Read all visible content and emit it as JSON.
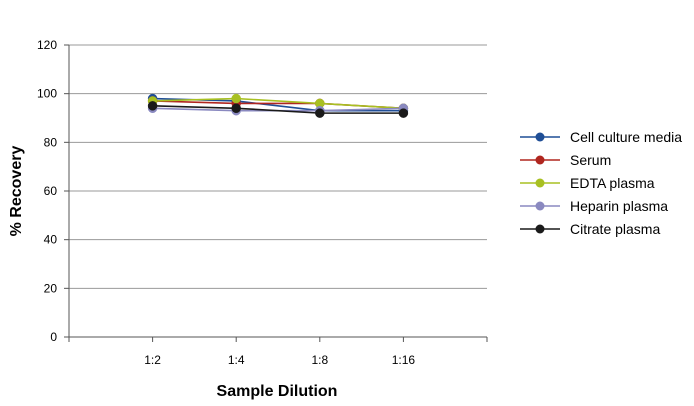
{
  "chart_data": {
    "type": "line",
    "title": "",
    "xlabel": "Sample Dilution",
    "ylabel": "% Recovery",
    "ylim": [
      0,
      120
    ],
    "yticks": [
      0,
      20,
      40,
      60,
      80,
      100,
      120
    ],
    "grid": "horizontal",
    "legend_position": "right",
    "categories": [
      "1:2",
      "1:4",
      "1:8",
      "1:16"
    ],
    "series": [
      {
        "name": "Cell culture media",
        "color": "#1f4e96",
        "values": [
          98,
          97,
          93,
          93
        ]
      },
      {
        "name": "Serum",
        "color": "#b0261f",
        "values": [
          97,
          96,
          96,
          94
        ]
      },
      {
        "name": "EDTA plasma",
        "color": "#a8c022",
        "values": [
          97,
          98,
          96,
          94
        ]
      },
      {
        "name": "Heparin plasma",
        "color": "#8a89c0",
        "values": [
          94,
          93,
          93,
          94
        ]
      },
      {
        "name": "Citrate plasma",
        "color": "#1a1a1a",
        "values": [
          95,
          94,
          92,
          92
        ]
      }
    ]
  }
}
